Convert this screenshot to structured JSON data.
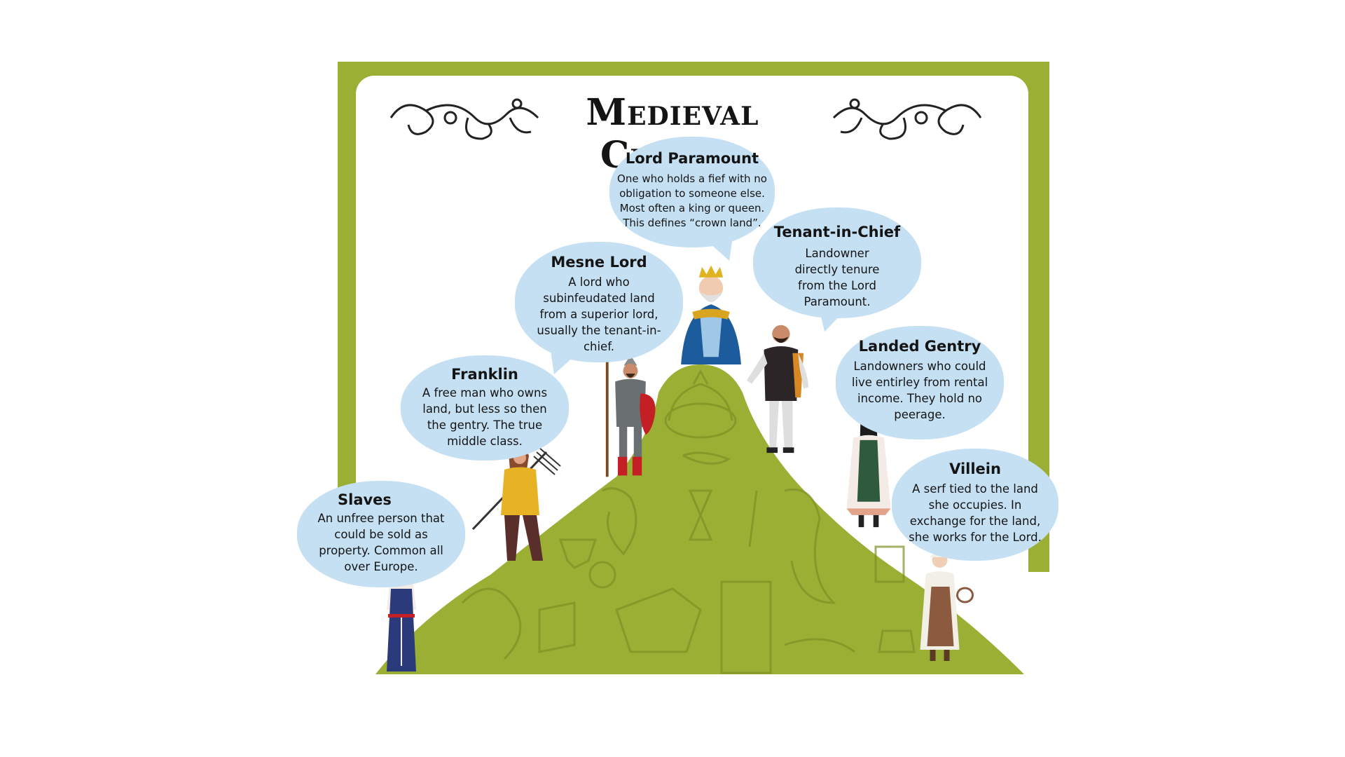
{
  "title": "Medieval Classes",
  "colors": {
    "frame": "#9aaf33",
    "mountain": "#9aaf33",
    "bubble": "#c5e0f3",
    "text": "#141414"
  },
  "bubbles": [
    {
      "name": "Lord Paramount",
      "description": "One who holds a fief with no obligation to someone else. Most often a king or queen. This defines “crown land”."
    },
    {
      "name": "Tenant-in-Chief",
      "description": "Landowner directly tenure from the Lord Paramount."
    },
    {
      "name": "Mesne Lord",
      "description": "A lord who subinfeudated land from a superior lord, usually the tenant-in-chief."
    },
    {
      "name": "Landed Gentry",
      "description": "Landowners who could live entirley from rental income. They hold no peerage."
    },
    {
      "name": "Franklin",
      "description": "A free man who owns land, but less so then the gentry. The true middle class."
    },
    {
      "name": "Villein",
      "description": "A serf tied to the land she occupies. In exchange for the land, she works for the Lord."
    },
    {
      "name": "Slaves",
      "description": "An unfree person that could be sold as property. Common all over Europe."
    }
  ],
  "figures": [
    "king",
    "lord-in-doublet",
    "knight",
    "lady",
    "franklin",
    "villein",
    "slave"
  ]
}
